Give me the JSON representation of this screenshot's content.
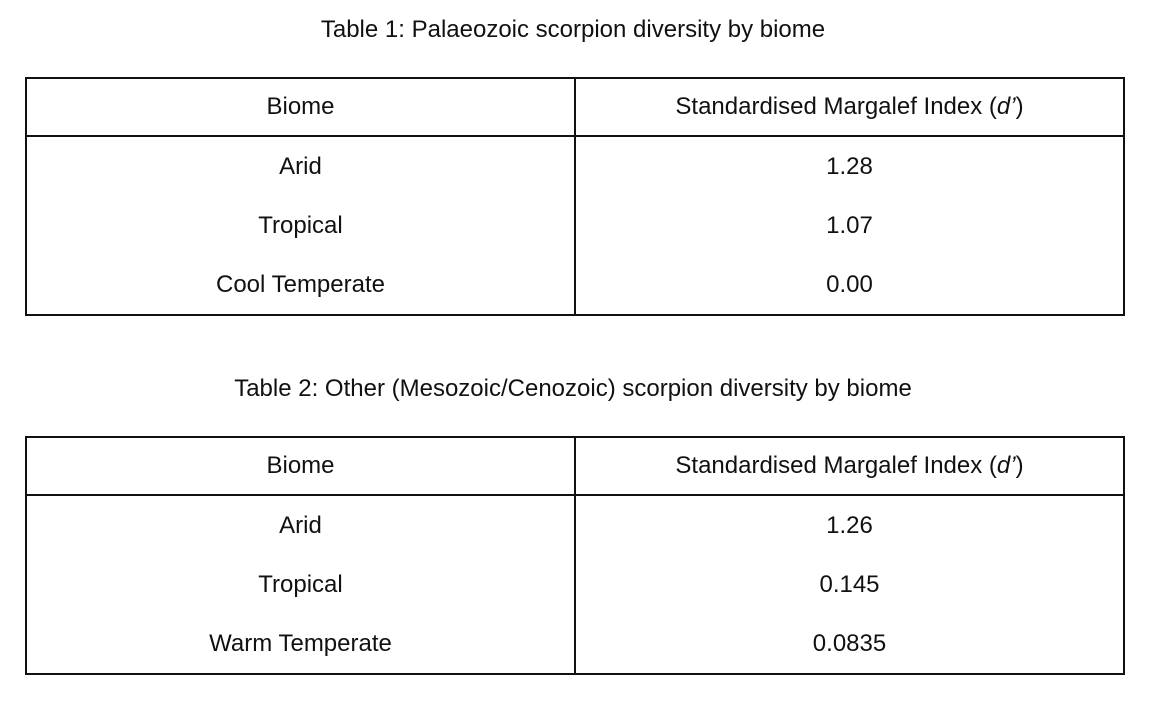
{
  "tables": [
    {
      "caption": "Table 1: Palaeozoic scorpion diversity by biome",
      "headers": {
        "biome": "Biome",
        "index_prefix": "Standardised Margalef Index (",
        "index_symbol": "d’",
        "index_suffix": ")"
      },
      "rows": [
        {
          "biome": "Arid",
          "value": "1.28"
        },
        {
          "biome": "Tropical",
          "value": "1.07"
        },
        {
          "biome": "Cool Temperate",
          "value": "0.00"
        }
      ]
    },
    {
      "caption": "Table 2: Other (Mesozoic/Cenozoic) scorpion diversity by biome",
      "headers": {
        "biome": "Biome",
        "index_prefix": "Standardised Margalef Index (",
        "index_symbol": "d’",
        "index_suffix": ")"
      },
      "rows": [
        {
          "biome": "Arid",
          "value": "1.26"
        },
        {
          "biome": "Tropical",
          "value": "0.145"
        },
        {
          "biome": "Warm Temperate",
          "value": "0.0835"
        }
      ]
    }
  ]
}
